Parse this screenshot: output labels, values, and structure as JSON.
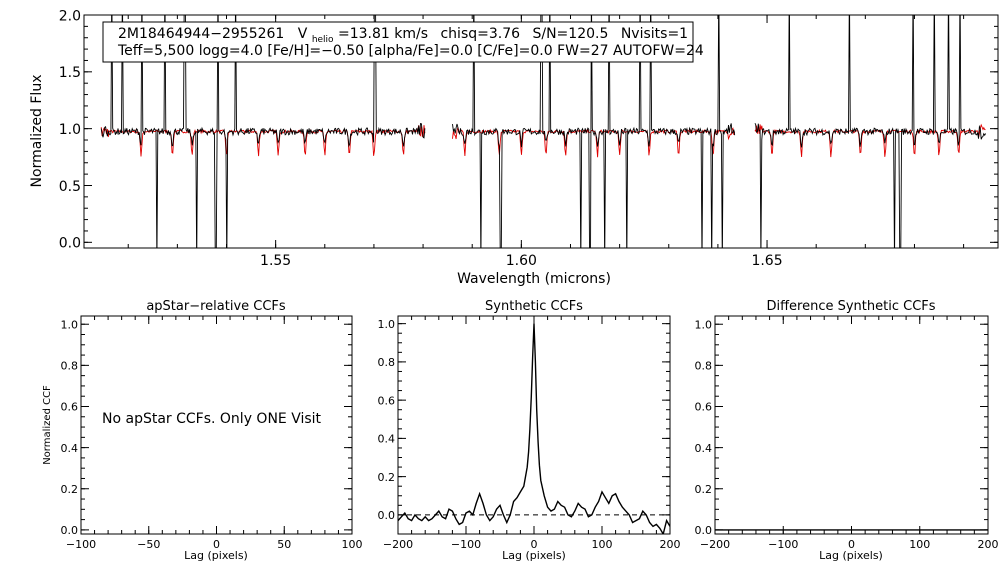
{
  "chart_data": [
    {
      "type": "line",
      "id": "spectrum",
      "xlabel": "Wavelength (microns)",
      "ylabel": "Normalized Flux",
      "xlim": [
        1.511,
        1.697
      ],
      "ylim": [
        -0.05,
        2.0
      ],
      "x_ticks": [
        1.55,
        1.6,
        1.65
      ],
      "x_tick_labels": [
        "1.55",
        "1.60",
        "1.65"
      ],
      "y_ticks": [
        0.0,
        0.5,
        1.0,
        1.5,
        2.0
      ],
      "y_tick_labels": [
        "0.0",
        "0.5",
        "1.0",
        "1.5",
        "2.0"
      ],
      "chip_ranges": [
        [
          1.5145,
          1.5805
        ],
        [
          1.586,
          1.6435
        ],
        [
          1.6475,
          1.6945
        ]
      ],
      "spikes_up": [
        1.5167,
        1.5188,
        1.5228,
        1.5275,
        1.5315,
        1.5383,
        1.5418,
        1.5702,
        1.5903,
        1.6041,
        1.6058,
        1.6142,
        1.6178,
        1.6241,
        1.6263,
        1.6402,
        1.6545,
        1.6668,
        1.6797,
        1.684,
        1.6869,
        1.6893
      ],
      "spikes_down": [
        1.5258,
        1.534,
        1.5378,
        1.54,
        1.5918,
        1.5958,
        1.6121,
        1.614,
        1.617,
        1.6215,
        1.6368,
        1.6387,
        1.6409,
        1.6487,
        1.676,
        1.6771
      ],
      "model_dips": [
        1.5226,
        1.529,
        1.533,
        1.54,
        1.5465,
        1.5505,
        1.556,
        1.56,
        1.565,
        1.57,
        1.576,
        1.5885,
        1.5955,
        1.6,
        1.605,
        1.609,
        1.6155,
        1.62,
        1.626,
        1.632,
        1.639,
        1.651,
        1.657,
        1.663,
        1.669,
        1.674,
        1.68,
        1.685,
        1.689
      ],
      "series": [
        {
          "name": "apStar spectrum",
          "color": "#000000"
        },
        {
          "name": "best-fit model",
          "color": "#e00000"
        }
      ],
      "annotation": {
        "object_id": "2M18464944−2955261",
        "vhelio_label": "V",
        "vhelio_sub": "helio",
        "vhelio_value": "=13.81 km/s",
        "chisq": "chisq=3.76",
        "snr": "S/N=120.5",
        "nvisits": "Nvisits=1",
        "line2": "Teff=5,500 logg=4.0 [Fe/H]=−0.50 [alpha/Fe]=0.0 [C/Fe]=0.0 FW=27 AUTOFW=24"
      }
    },
    {
      "type": "line",
      "id": "apstar-ccf",
      "title": "apStar−relative CCFs",
      "xlabel": "Lag (pixels)",
      "ylabel": "Normalized CCF",
      "xlim": [
        -100,
        100
      ],
      "ylim": [
        -0.02,
        1.04
      ],
      "x_ticks": [
        -100,
        -50,
        0,
        50,
        100
      ],
      "x_tick_labels": [
        "−100",
        "−50",
        "0",
        "50",
        "100"
      ],
      "y_ticks": [
        0.0,
        0.2,
        0.4,
        0.6,
        0.8,
        1.0
      ],
      "y_tick_labels": [
        "0.0",
        "0.2",
        "0.4",
        "0.6",
        "0.8",
        "1.0"
      ],
      "note": "No apStar CCFs.  Only ONE Visit"
    },
    {
      "type": "line",
      "id": "synthetic-ccf",
      "title": "Synthetic CCFs",
      "xlabel": "Lag (pixels)",
      "xlim": [
        -200,
        200
      ],
      "ylim": [
        -0.1,
        1.04
      ],
      "x_ticks": [
        -200,
        -100,
        0,
        100,
        200
      ],
      "x_tick_labels": [
        "−200",
        "−100",
        "0",
        "100",
        "200"
      ],
      "y_ticks": [
        0.0,
        0.2,
        0.4,
        0.6,
        0.8,
        1.0
      ],
      "y_tick_labels": [
        "0.0",
        "0.2",
        "0.4",
        "0.6",
        "0.8",
        "1.0"
      ],
      "zero_line": 0.0,
      "x": [
        -200,
        -195,
        -190,
        -185,
        -180,
        -175,
        -170,
        -165,
        -160,
        -155,
        -150,
        -145,
        -140,
        -135,
        -130,
        -125,
        -120,
        -115,
        -110,
        -105,
        -100,
        -95,
        -90,
        -85,
        -80,
        -75,
        -70,
        -65,
        -60,
        -55,
        -50,
        -45,
        -40,
        -35,
        -30,
        -25,
        -20,
        -15,
        -10,
        -8,
        -6,
        -4,
        -2,
        0,
        2,
        4,
        6,
        8,
        10,
        15,
        20,
        25,
        30,
        35,
        40,
        45,
        50,
        55,
        60,
        65,
        70,
        75,
        80,
        85,
        90,
        95,
        100,
        105,
        110,
        115,
        120,
        125,
        130,
        135,
        140,
        145,
        150,
        155,
        160,
        165,
        170,
        175,
        180,
        185,
        190,
        195,
        200
      ],
      "y": [
        -0.03,
        -0.01,
        0.01,
        -0.02,
        -0.03,
        0.0,
        -0.02,
        -0.03,
        -0.01,
        -0.03,
        -0.02,
        0.0,
        0.02,
        -0.01,
        -0.02,
        0.03,
        0.02,
        -0.02,
        -0.05,
        -0.04,
        0.01,
        0.02,
        0.0,
        0.06,
        0.11,
        0.06,
        0.0,
        -0.03,
        -0.01,
        0.03,
        0.05,
        0.0,
        -0.04,
        0.0,
        0.07,
        0.09,
        0.12,
        0.15,
        0.25,
        0.33,
        0.45,
        0.62,
        0.82,
        1.0,
        0.8,
        0.55,
        0.38,
        0.26,
        0.18,
        0.1,
        0.04,
        0.02,
        0.03,
        0.07,
        0.05,
        0.04,
        0.0,
        -0.01,
        0.02,
        0.06,
        0.04,
        0.03,
        -0.01,
        0.0,
        0.04,
        0.07,
        0.12,
        0.09,
        0.06,
        0.1,
        0.11,
        0.07,
        0.04,
        0.02,
        0.0,
        -0.04,
        -0.03,
        -0.02,
        0.02,
        0.0,
        -0.04,
        -0.06,
        -0.05,
        -0.07,
        -0.1,
        -0.03,
        -0.06
      ]
    },
    {
      "type": "line",
      "id": "difference-ccf",
      "title": "Difference Synthetic CCFs",
      "xlabel": "Lag (pixels)",
      "xlim": [
        -200,
        200
      ],
      "ylim": [
        -0.02,
        1.04
      ],
      "x_ticks": [
        -200,
        -100,
        0,
        100,
        200
      ],
      "x_tick_labels": [
        "−200",
        "−100",
        "0",
        "100",
        "200"
      ],
      "y_ticks": [
        0.0,
        0.2,
        0.4,
        0.6,
        0.8,
        1.0
      ],
      "y_tick_labels": [
        "0.0",
        "0.2",
        "0.4",
        "0.6",
        "0.8",
        "1.0"
      ],
      "x": [
        -200,
        200
      ],
      "y": [
        0.0,
        0.0
      ]
    }
  ]
}
